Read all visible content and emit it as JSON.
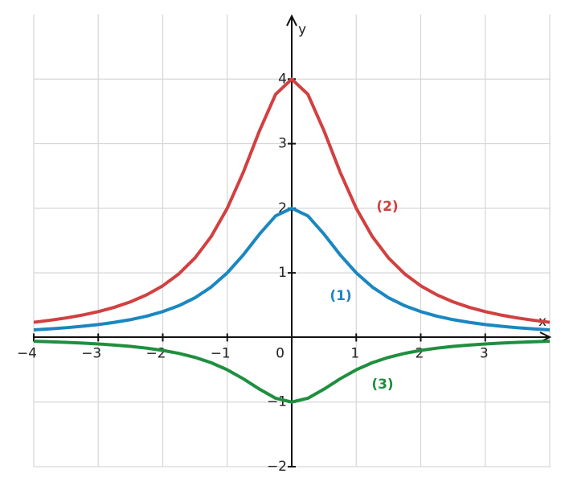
{
  "chart_data": {
    "type": "line",
    "x_label": "x",
    "y_label": "y",
    "x": [
      -4,
      -3.75,
      -3.5,
      -3.25,
      -3,
      -2.75,
      -2.5,
      -2.25,
      -2,
      -1.75,
      -1.5,
      -1.25,
      -1,
      -0.75,
      -0.5,
      -0.25,
      0,
      0.25,
      0.5,
      0.75,
      1,
      1.25,
      1.5,
      1.75,
      2,
      2.25,
      2.5,
      2.75,
      3,
      3.25,
      3.5,
      3.75,
      4
    ],
    "series": [
      {
        "name": "(1)",
        "color": "#1a87c0",
        "values": [
          0.118,
          0.133,
          0.151,
          0.173,
          0.2,
          0.234,
          0.276,
          0.33,
          0.4,
          0.492,
          0.615,
          0.78,
          1,
          1.28,
          1.6,
          1.882,
          2,
          1.882,
          1.6,
          1.28,
          1,
          0.78,
          0.615,
          0.492,
          0.4,
          0.33,
          0.276,
          0.234,
          0.2,
          0.173,
          0.151,
          0.133,
          0.118
        ]
      },
      {
        "name": "(2)",
        "color": "#d24040",
        "values": [
          0.235,
          0.266,
          0.302,
          0.346,
          0.4,
          0.467,
          0.552,
          0.66,
          0.8,
          0.985,
          1.231,
          1.561,
          2,
          2.56,
          3.2,
          3.765,
          4,
          3.765,
          3.2,
          2.56,
          2,
          1.561,
          1.231,
          0.985,
          0.8,
          0.66,
          0.552,
          0.467,
          0.4,
          0.346,
          0.302,
          0.266,
          0.235
        ]
      },
      {
        "name": "(3)",
        "color": "#1f8f3f",
        "values": [
          -0.059,
          -0.066,
          -0.076,
          -0.087,
          -0.1,
          -0.117,
          -0.138,
          -0.165,
          -0.2,
          -0.246,
          -0.308,
          -0.39,
          -0.5,
          -0.64,
          -0.8,
          -0.941,
          -1,
          -0.941,
          -0.8,
          -0.64,
          -0.5,
          -0.39,
          -0.308,
          -0.246,
          -0.2,
          -0.165,
          -0.138,
          -0.117,
          -0.1,
          -0.087,
          -0.076,
          -0.066,
          -0.059
        ]
      }
    ],
    "xlim": [
      -4,
      4
    ],
    "ylim": [
      -2,
      5
    ],
    "xticks": [
      {
        "value": -4,
        "label": "−4"
      },
      {
        "value": -3,
        "label": "−3"
      },
      {
        "value": -2,
        "label": "−2"
      },
      {
        "value": -1,
        "label": "−1"
      },
      0,
      1,
      2,
      3
    ],
    "yticks": [
      {
        "value": -2,
        "label": "−2"
      },
      {
        "value": -1,
        "label": "−1"
      },
      1,
      2,
      3,
      4
    ],
    "grid": true
  }
}
